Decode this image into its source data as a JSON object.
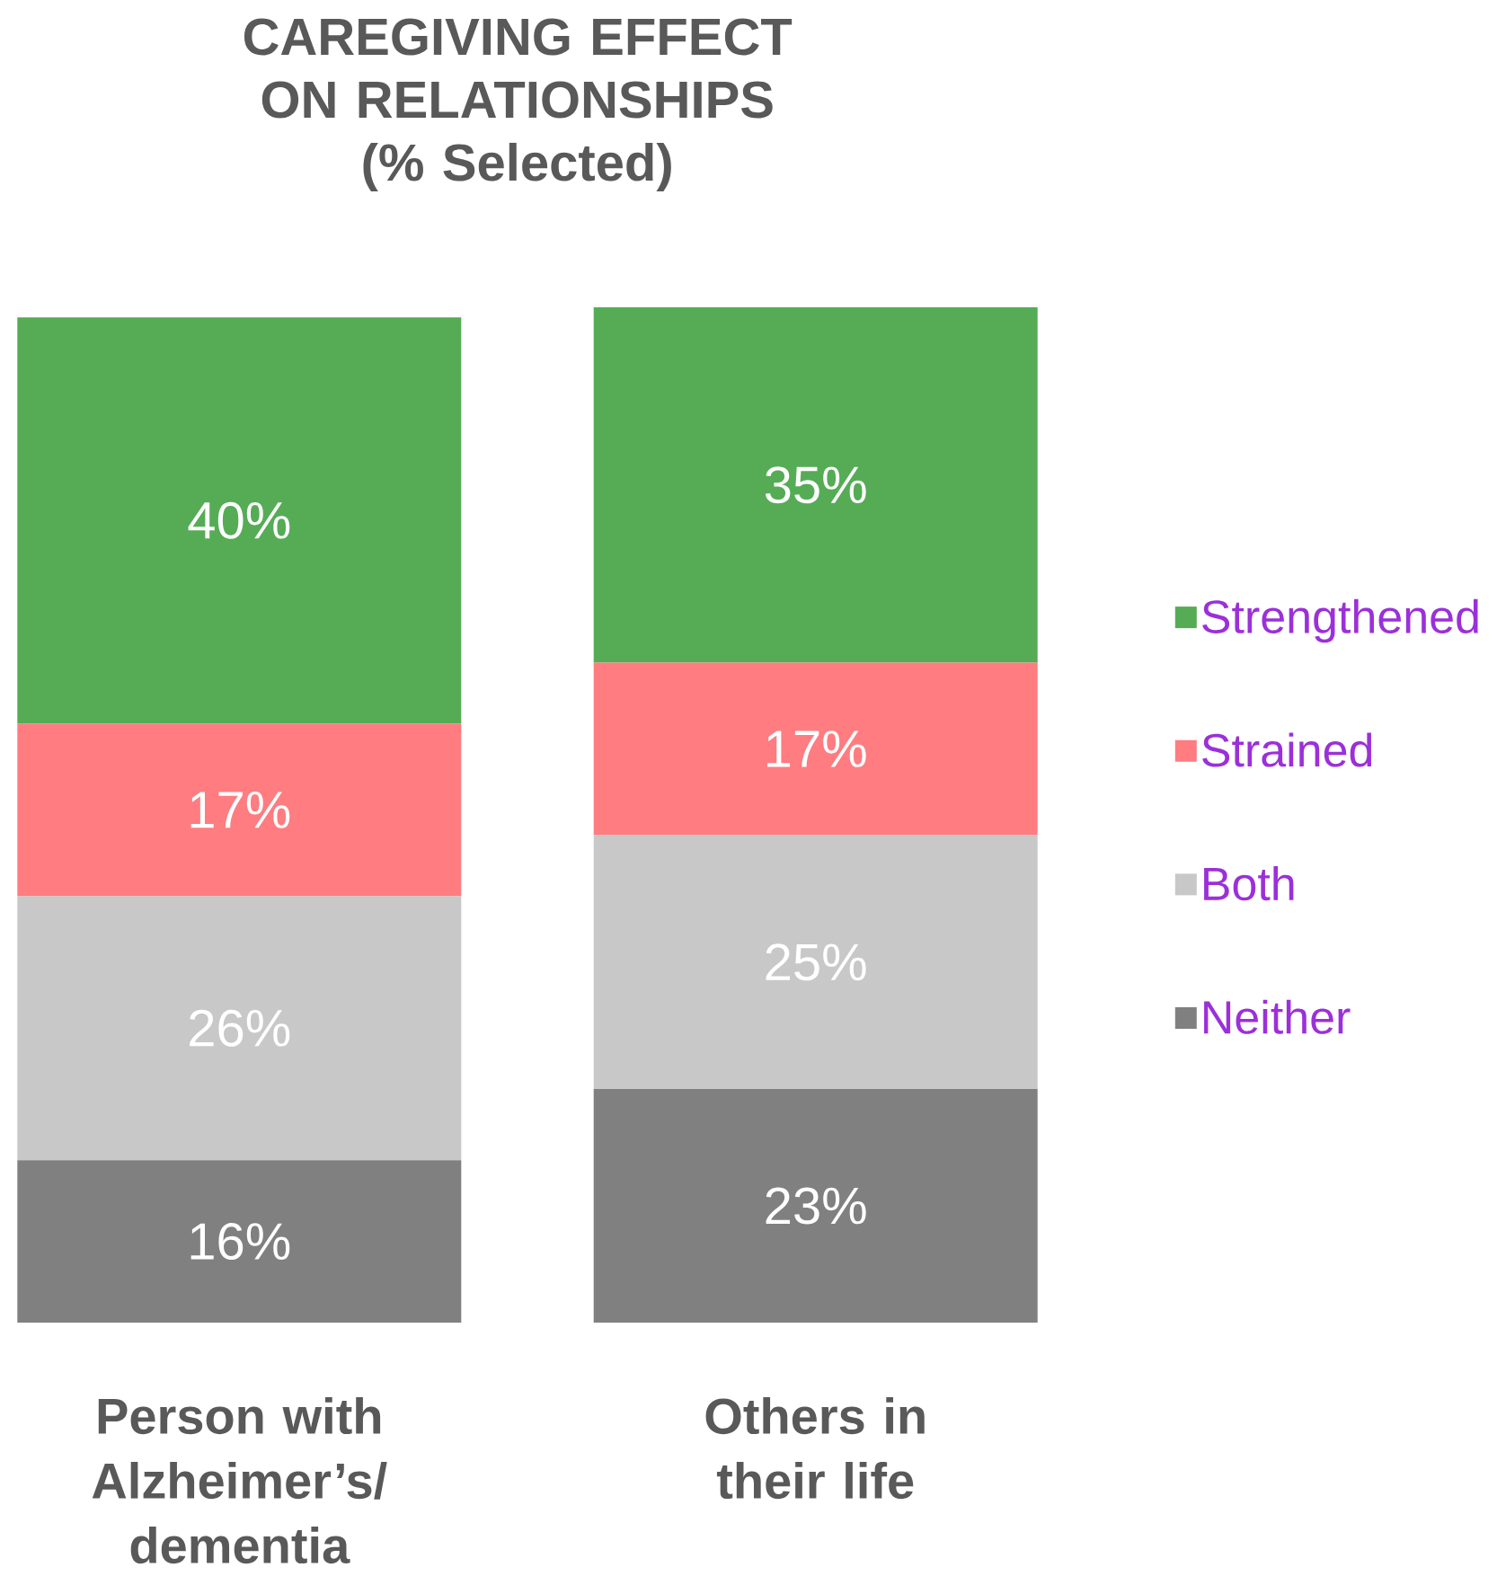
{
  "chart_data": {
    "type": "bar",
    "stacked": true,
    "title": "CAREGIVING EFFECT ON RELATIONSHIPS (% Selected)",
    "categories": [
      "Person with Alzheimer’s/ dementia",
      "Others in their life"
    ],
    "series": [
      {
        "name": "Neither",
        "color": "#808080",
        "values": [
          16,
          23
        ],
        "value_labels": [
          "16%",
          "23%"
        ]
      },
      {
        "name": "Both",
        "color": "#c8c8c8",
        "values": [
          26,
          25
        ],
        "value_labels": [
          "26%",
          "25%"
        ]
      },
      {
        "name": "Strained",
        "color": "#ff7c80",
        "values": [
          17,
          17
        ],
        "value_labels": [
          "17%",
          "17%"
        ]
      },
      {
        "name": "Strengthened",
        "color": "#55ac55",
        "values": [
          40,
          35
        ],
        "value_labels": [
          "40%",
          "35%"
        ]
      }
    ],
    "legend": "right"
  }
}
